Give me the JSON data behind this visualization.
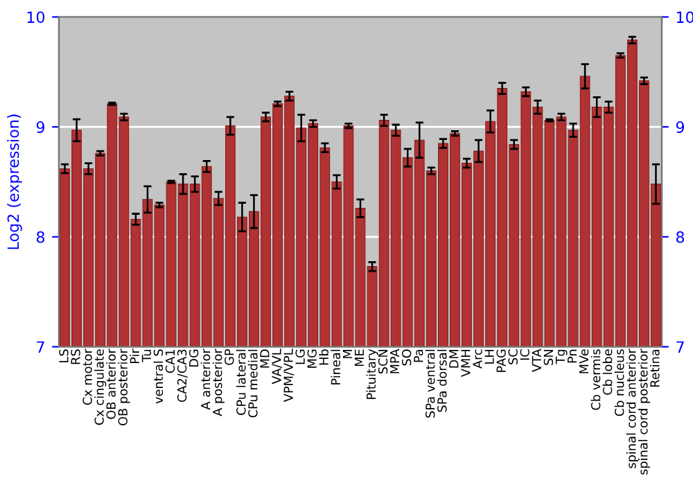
{
  "chart_data": {
    "type": "bar",
    "ylabel": "Log2 (expression)",
    "categories": [
      "LS",
      "RS",
      "Cx motor",
      "Cx cingulate",
      "OB anterior",
      "OB posterior",
      "Pir",
      "Tu",
      "ventral S",
      "CA1",
      "CA2/CA3",
      "DG",
      "A anterior",
      "A posterior",
      "GP",
      "CPu lateral",
      "CPu medial",
      "MD",
      "VA/VL",
      "VPM/VPL",
      "LG",
      "MG",
      "Hb",
      "Pineal",
      "M",
      "ME",
      "Pituitary",
      "SCN",
      "MPA",
      "SO",
      "Pa",
      "SPa ventral",
      "SPa dorsal",
      "DM",
      "VMH",
      "Arc",
      "LH",
      "PAG",
      "SC",
      "IC",
      "VTA",
      "SN",
      "Tg",
      "Pn",
      "MVe",
      "Cb vermis",
      "Cb lobe",
      "Cb nucleus",
      "spinal cord anterior",
      "spinal cord posterior",
      "Retina"
    ],
    "values": [
      8.62,
      8.97,
      8.62,
      8.76,
      9.21,
      9.09,
      8.16,
      8.34,
      8.29,
      8.5,
      8.48,
      8.48,
      8.64,
      8.35,
      9.01,
      8.18,
      8.23,
      9.09,
      9.21,
      9.28,
      8.99,
      9.03,
      8.81,
      8.5,
      9.01,
      8.26,
      7.73,
      9.06,
      8.97,
      8.72,
      8.88,
      8.6,
      8.85,
      8.94,
      8.67,
      8.78,
      9.05,
      9.35,
      8.84,
      9.32,
      9.18,
      9.06,
      9.09,
      8.97,
      9.46,
      9.18,
      9.18,
      9.65,
      9.79,
      9.42,
      8.48
    ],
    "errors": [
      0.04,
      0.1,
      0.05,
      0.02,
      0.01,
      0.03,
      0.05,
      0.12,
      0.02,
      0.01,
      0.09,
      0.07,
      0.05,
      0.06,
      0.08,
      0.13,
      0.15,
      0.04,
      0.02,
      0.04,
      0.12,
      0.03,
      0.04,
      0.06,
      0.02,
      0.08,
      0.04,
      0.05,
      0.05,
      0.08,
      0.16,
      0.03,
      0.04,
      0.02,
      0.04,
      0.1,
      0.1,
      0.05,
      0.04,
      0.04,
      0.06,
      0.01,
      0.03,
      0.06,
      0.11,
      0.09,
      0.05,
      0.02,
      0.03,
      0.03,
      0.18
    ],
    "color": "#b03232",
    "ylim": [
      7,
      10
    ],
    "yticks": [
      7,
      8,
      9,
      10
    ],
    "y2lim": [
      7,
      10
    ],
    "y2ticks": [
      7,
      8,
      9,
      10
    ],
    "grid": "y"
  }
}
